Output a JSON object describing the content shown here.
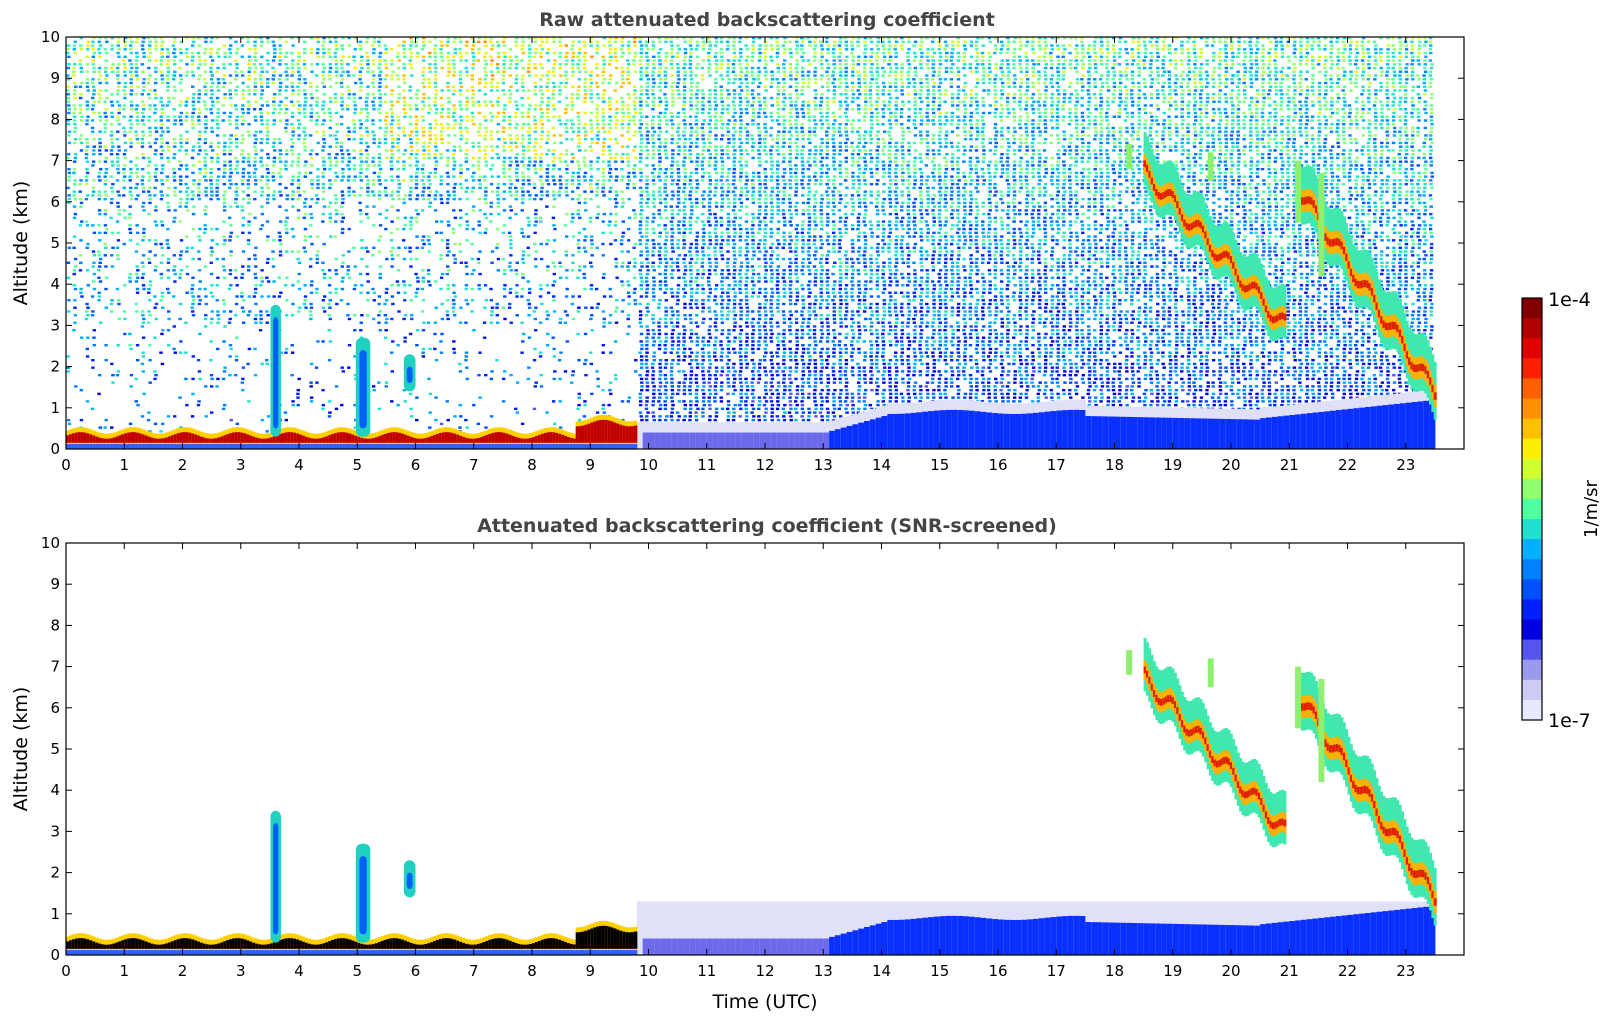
{
  "chart_data": [
    {
      "type": "heatmap",
      "title": "Raw attenuated backscattering coefficient",
      "xlabel": "",
      "ylabel": "Altitude (km)",
      "xlim": [
        0,
        24
      ],
      "ylim": [
        0,
        10
      ],
      "x_data_end": 23.5,
      "xticks": [
        0,
        1,
        2,
        3,
        4,
        5,
        6,
        7,
        8,
        9,
        10,
        11,
        12,
        13,
        14,
        15,
        16,
        17,
        18,
        19,
        20,
        21,
        22,
        23
      ],
      "yticks": [
        0,
        1,
        2,
        3,
        4,
        5,
        6,
        7,
        8,
        9,
        10
      ],
      "grid": false,
      "features": [
        {
          "name": "boundary-layer-aerosol",
          "t_start": 0,
          "t_end": 9.8,
          "alt_bottom": 0.1,
          "alt_top": 0.5,
          "level": "very-high"
        },
        {
          "name": "residual-layer",
          "t_start": 9.8,
          "t_end": 23.5,
          "alt_bottom": 0,
          "alt_top_start": 0.4,
          "alt_top_end": 1.2,
          "level": "low"
        },
        {
          "name": "low-cloud-3.6",
          "t_center": 3.6,
          "alt_bottom": 0.3,
          "alt_top": 3.5,
          "level": "medium"
        },
        {
          "name": "low-cloud-5.1",
          "t_center": 5.1,
          "alt_bottom": 0.3,
          "alt_top": 2.7,
          "level": "medium"
        },
        {
          "name": "cirrus-band-1",
          "t_start": 18.5,
          "t_end": 20.8,
          "alt_top_start": 7.3,
          "alt_top_end": 3.5,
          "level": "high"
        },
        {
          "name": "cirrus-band-2",
          "t_start": 21.2,
          "t_end": 23.5,
          "alt_top_start": 6.8,
          "alt_top_end": 1.8,
          "level": "high"
        }
      ]
    },
    {
      "type": "heatmap",
      "title": "Attenuated backscattering coefficient (SNR-screened)",
      "xlabel": "Time (UTC)",
      "ylabel": "Altitude (km)",
      "xlim": [
        0,
        24
      ],
      "ylim": [
        0,
        10
      ],
      "x_data_end": 23.5,
      "xticks": [
        0,
        1,
        2,
        3,
        4,
        5,
        6,
        7,
        8,
        9,
        10,
        11,
        12,
        13,
        14,
        15,
        16,
        17,
        18,
        19,
        20,
        21,
        22,
        23
      ],
      "yticks": [
        0,
        1,
        2,
        3,
        4,
        5,
        6,
        7,
        8,
        9,
        10
      ],
      "grid": false
    }
  ],
  "colorbar": {
    "label": "1/m/sr",
    "max_label": "1e-4",
    "min_label": "1e-7",
    "colors": [
      "#800000",
      "#b00000",
      "#e00000",
      "#ff2000",
      "#ff6000",
      "#ff9000",
      "#ffc000",
      "#ffee00",
      "#d0ff30",
      "#90ff70",
      "#50ffa0",
      "#20e0d0",
      "#00b0ff",
      "#0080ff",
      "#0050ff",
      "#0020ff",
      "#0000e0",
      "#5555ee",
      "#9999ee",
      "#ccccf5",
      "#e8e8ff"
    ]
  }
}
